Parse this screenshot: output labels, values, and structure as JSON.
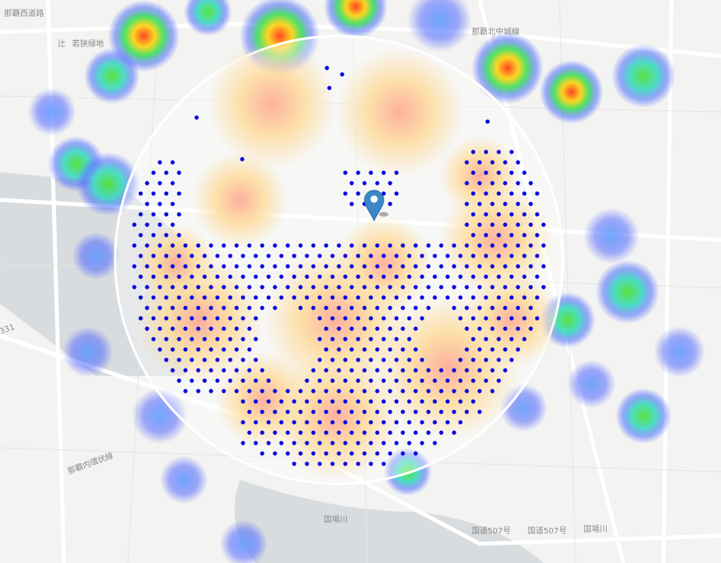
{
  "map": {
    "labels": [
      "那覇西道路",
      "辻",
      "若狭緑地",
      "那覇北中城線",
      "那覇内環状線",
      "国道507号",
      "国道507号",
      "国場川",
      "国場川",
      "331"
    ]
  }
}
